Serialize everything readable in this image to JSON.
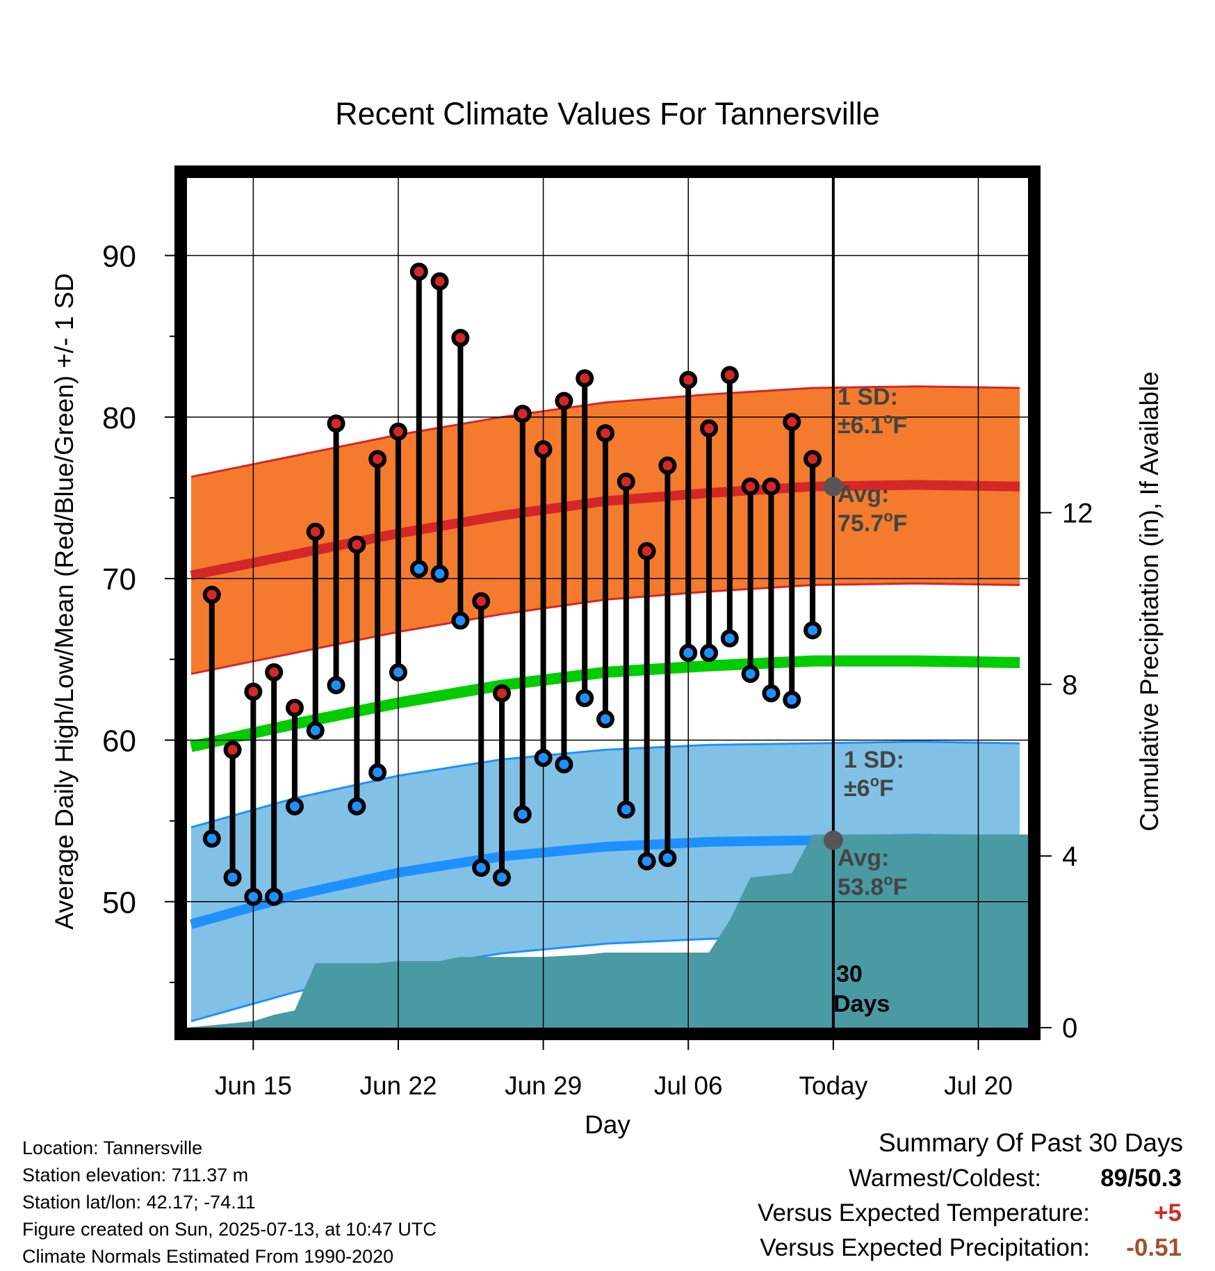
{
  "chart_data": {
    "type": "line",
    "title": "Recent Climate Values For Tannersville",
    "xlabel": "Day",
    "ylabel": "Average Daily High/Low/Mean (Red/Blue/Green) +/- 1 SD",
    "y2label": "Cumulative Precipitation (in), If Available",
    "x_ticks": [
      {
        "label": "Jun 15",
        "day": 3
      },
      {
        "label": "Jun 22",
        "day": 10
      },
      {
        "label": "Jun 29",
        "day": 17
      },
      {
        "label": "Jul 06",
        "day": 24
      },
      {
        "label": "Today",
        "day": 31
      },
      {
        "label": "Jul 20",
        "day": 38
      }
    ],
    "y_ticks": [
      50,
      60,
      70,
      80,
      90
    ],
    "y2_ticks": [
      0,
      4,
      8,
      12
    ],
    "xlim_days": [
      -0.2,
      40.4
    ],
    "ylim": [
      42.2,
      94.8
    ],
    "y2lim": [
      0,
      19.8
    ],
    "today_day": 31,
    "grid": true,
    "daily_high": [
      69.0,
      59.4,
      63.0,
      64.2,
      62.0,
      72.9,
      79.6,
      72.1,
      77.4,
      79.1,
      89.0,
      88.4,
      84.9,
      68.6,
      62.9,
      80.2,
      78.0,
      81.0,
      82.4,
      79.0,
      76.0,
      71.7,
      77.0,
      82.3,
      79.3,
      82.6,
      75.7,
      75.7,
      79.7,
      77.4
    ],
    "daily_low": [
      53.9,
      51.5,
      50.3,
      50.3,
      55.9,
      60.6,
      63.4,
      55.9,
      58.0,
      64.2,
      70.6,
      70.3,
      67.4,
      52.1,
      51.5,
      55.4,
      58.9,
      58.5,
      62.6,
      61.3,
      55.7,
      52.5,
      52.7,
      65.4,
      65.4,
      66.3,
      64.1,
      62.9,
      62.5,
      66.8
    ],
    "daily_first_day": 1,
    "normal_days": [
      0,
      5,
      10,
      15,
      20,
      25,
      30,
      35,
      40
    ],
    "normal_high": [
      70.2,
      71.5,
      72.8,
      73.9,
      74.8,
      75.3,
      75.7,
      75.8,
      75.7
    ],
    "normal_mean": [
      59.6,
      61.0,
      62.3,
      63.4,
      64.2,
      64.6,
      64.9,
      64.9,
      64.8
    ],
    "normal_low": [
      48.6,
      50.4,
      51.8,
      52.8,
      53.4,
      53.7,
      53.8,
      53.9,
      53.8
    ],
    "high_sd": 6.1,
    "low_sd": 6.0,
    "precip_days": [
      -0.2,
      2,
      3,
      4,
      5,
      6,
      9,
      10,
      12,
      13,
      17,
      19,
      20,
      24,
      25,
      26,
      27,
      28,
      29,
      30,
      40.4
    ],
    "precip_cumulative": [
      0.0,
      0.1,
      0.15,
      0.3,
      0.4,
      1.5,
      1.5,
      1.55,
      1.55,
      1.65,
      1.65,
      1.7,
      1.75,
      1.75,
      1.75,
      2.5,
      3.5,
      3.55,
      3.6,
      4.5,
      4.5
    ],
    "series": [
      {
        "name": "1 SD: ±6.1°F",
        "color": "#f47b2e"
      },
      {
        "name": "Avg: 75.7°F",
        "color": "#d42727"
      },
      {
        "name": "1 SD: ±6°F",
        "color": "#82c1e6"
      },
      {
        "name": "Avg: 53.8°F",
        "color": "#1e90ff"
      }
    ],
    "annotations": {
      "high_sd_label": "1 SD:",
      "high_sd_value": "±6.1",
      "high_avg_label": "Avg:",
      "high_avg_value": "75.7",
      "low_sd_label": "1 SD:",
      "low_sd_value": "±6",
      "low_avg_label": "Avg:",
      "low_avg_value": "53.8",
      "degree_unit": "F",
      "degree_mark": "o",
      "window_number": "30",
      "window_unit": "Days"
    },
    "colors": {
      "high_band": "#f47b2e",
      "high_line": "#d42727",
      "low_band": "#82c1e6",
      "low_line": "#1e90ff",
      "mean_line": "#00cc00",
      "precip": "#4a9aa4",
      "high_marker": "#d42727",
      "low_marker": "#1e90ff",
      "today_marker": "#555555",
      "annotation_text": "#444444"
    }
  },
  "footer": {
    "location": "Location: Tannersville",
    "elevation": "Station elevation: 711.37 m",
    "latlon": "Station lat/lon: 42.17; -74.11",
    "created": "Figure created on Sun, 2025-07-13, at 10:47 UTC",
    "normals": "Climate Normals Estimated From 1990-2020"
  },
  "summary": {
    "title": "Summary Of Past 30 Days",
    "warmest_label": "Warmest/Coldest:",
    "warmest_value": "89/50.3",
    "temp_label": "Versus Expected Temperature:",
    "temp_value": "+5",
    "temp_color": "#d42727",
    "precip_label": "Versus Expected Precipitation:",
    "precip_value": "-0.51",
    "precip_color": "#a0522d"
  }
}
